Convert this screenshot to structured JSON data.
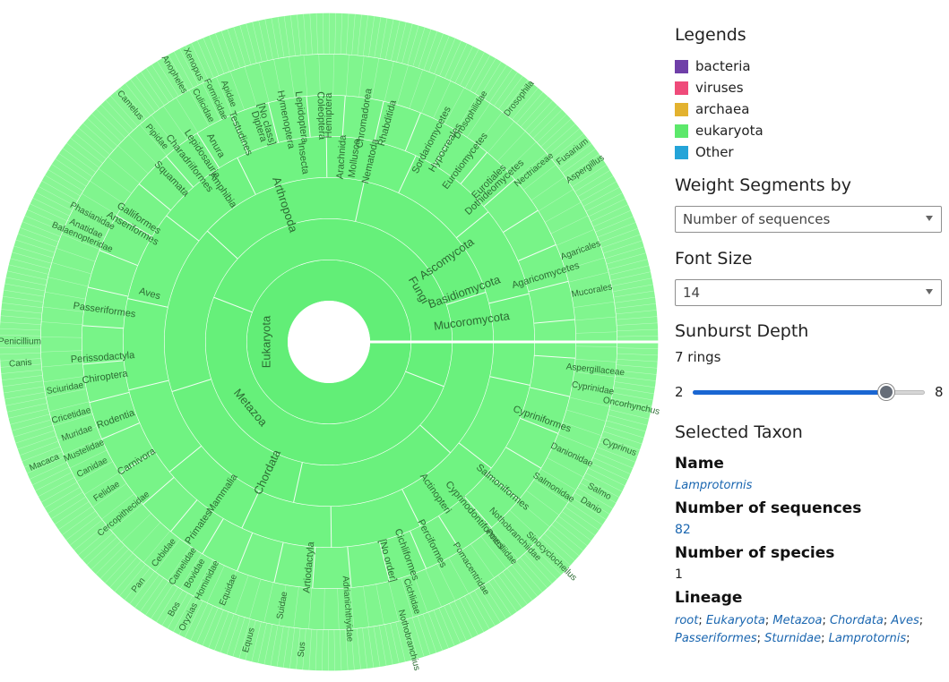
{
  "legends": {
    "title": "Legends",
    "items": [
      {
        "label": "bacteria",
        "color": "#6f3fa8"
      },
      {
        "label": "viruses",
        "color": "#ef4b7a"
      },
      {
        "label": "archaea",
        "color": "#e3b22f"
      },
      {
        "label": "eukaryota",
        "color": "#5ce86b"
      },
      {
        "label": "Other",
        "color": "#24a4d8"
      }
    ]
  },
  "weight": {
    "title": "Weight Segments by",
    "value": "Number of sequences"
  },
  "font_size": {
    "title": "Font Size",
    "value": "14"
  },
  "depth": {
    "title": "Sunburst Depth",
    "value_text": "7 rings",
    "min": "2",
    "max": "8",
    "value": 7
  },
  "selected": {
    "title": "Selected Taxon",
    "name_label": "Name",
    "name": "Lamprotornis",
    "sequences_label": "Number of sequences",
    "sequences": "82",
    "species_label": "Number of species",
    "species": "1",
    "lineage_label": "Lineage",
    "lineage": [
      "root",
      "Eukaryota",
      "Metazoa",
      "Chordata",
      "Aves",
      "Passeriformes",
      "Sturnidae",
      "Lamprotornis"
    ]
  },
  "sunburst": {
    "colors": {
      "fill": "#66f07a",
      "stroke": "#ffffff"
    },
    "labels": [
      {
        "text": "Eukaryota",
        "ring": 1
      },
      {
        "text": "Metazoa",
        "ring": 2
      },
      {
        "text": "Fungi",
        "ring": 2
      },
      {
        "text": "Chordata",
        "ring": 3
      },
      {
        "text": "Arthropoda",
        "ring": 3
      },
      {
        "text": "Ascomycota",
        "ring": 3
      },
      {
        "text": "Mammalia",
        "ring": 4
      },
      {
        "text": "Aves",
        "ring": 4
      },
      {
        "text": "Actinopteri",
        "ring": 4
      },
      {
        "text": "Insecta",
        "ring": 4
      },
      {
        "text": "Amphibia",
        "ring": 4
      },
      {
        "text": "Mollusca",
        "ring": 4
      },
      {
        "text": "Nematoda",
        "ring": 4
      },
      {
        "text": "Arachnida",
        "ring": 4
      },
      {
        "text": "Basidiomycota",
        "ring": 3
      },
      {
        "text": "Mucoromycota",
        "ring": 3
      },
      {
        "text": "Passeriformes",
        "ring": 5
      },
      {
        "text": "Primates",
        "ring": 5
      },
      {
        "text": "Carnivora",
        "ring": 5
      },
      {
        "text": "Rodentia",
        "ring": 5
      },
      {
        "text": "Artiodactyla",
        "ring": 5
      },
      {
        "text": "Chiroptera",
        "ring": 5
      },
      {
        "text": "Perissodactyla",
        "ring": 5
      },
      {
        "text": "Cypriniformes",
        "ring": 5
      },
      {
        "text": "Salmoniformes",
        "ring": 5
      },
      {
        "text": "Cyprinodontiformes",
        "ring": 5
      },
      {
        "text": "Perciformes",
        "ring": 5
      },
      {
        "text": "Diptera",
        "ring": 5
      },
      {
        "text": "Hymenoptera",
        "ring": 5
      },
      {
        "text": "Lepidoptera",
        "ring": 5
      },
      {
        "text": "Coleoptera",
        "ring": 5
      },
      {
        "text": "Hemiptera",
        "ring": 5
      },
      {
        "text": "Anura",
        "ring": 5
      },
      {
        "text": "Squamata",
        "ring": 5
      },
      {
        "text": "Testudines",
        "ring": 5
      },
      {
        "text": "Chromadorea",
        "ring": 5
      },
      {
        "text": "Rhabditida",
        "ring": 5
      },
      {
        "text": "Hypocreales",
        "ring": 5
      },
      {
        "text": "Eurotiales",
        "ring": 5
      },
      {
        "text": "Sordariomycetes",
        "ring": 5
      },
      {
        "text": "Eurotiomycetes",
        "ring": 5
      },
      {
        "text": "Dothideomycetes",
        "ring": 5
      },
      {
        "text": "Agaricomycetes",
        "ring": 5
      },
      {
        "text": "Agaricales",
        "ring": 6
      },
      {
        "text": "Mucorales",
        "ring": 6
      },
      {
        "text": "Cichliformes",
        "ring": 5
      },
      {
        "text": "Cichlidae",
        "ring": 6
      },
      {
        "text": "[No order]",
        "ring": 5
      },
      {
        "text": "Cyprinidae",
        "ring": 6
      },
      {
        "text": "Danionidae",
        "ring": 6
      },
      {
        "text": "Salmonidae",
        "ring": 6
      },
      {
        "text": "Nothobranchiidae",
        "ring": 6
      },
      {
        "text": "Poeciliidae",
        "ring": 6
      },
      {
        "text": "Pomacentridae",
        "ring": 6
      },
      {
        "text": "Adrianichthyidae",
        "ring": 6
      },
      {
        "text": "Hominidae",
        "ring": 6
      },
      {
        "text": "Cebidae",
        "ring": 6
      },
      {
        "text": "Cercopithecidae",
        "ring": 6
      },
      {
        "text": "Felidae",
        "ring": 6
      },
      {
        "text": "Canidae",
        "ring": 6
      },
      {
        "text": "Mustelidae",
        "ring": 6
      },
      {
        "text": "Muridae",
        "ring": 6
      },
      {
        "text": "Cricetidae",
        "ring": 6
      },
      {
        "text": "Sciuridae",
        "ring": 6
      },
      {
        "text": "Equidae",
        "ring": 6
      },
      {
        "text": "Suidae",
        "ring": 6
      },
      {
        "text": "Bovidae",
        "ring": 6
      },
      {
        "text": "Camelidae",
        "ring": 6
      },
      {
        "text": "Balaenopteridae",
        "ring": 6
      },
      {
        "text": "Phasianidae",
        "ring": 6
      },
      {
        "text": "Anatidae",
        "ring": 6
      },
      {
        "text": "Anseriformes",
        "ring": 5
      },
      {
        "text": "Galliformes",
        "ring": 5
      },
      {
        "text": "Charadriiformes",
        "ring": 5
      },
      {
        "text": "Pipidae",
        "ring": 6
      },
      {
        "text": "Lepidosauria",
        "ring": 5
      },
      {
        "text": "[No class]",
        "ring": 5
      },
      {
        "text": "Apidae",
        "ring": 6
      },
      {
        "text": "Formicidae",
        "ring": 6
      },
      {
        "text": "Culicidae",
        "ring": 6
      },
      {
        "text": "Drosophilidae",
        "ring": 6
      },
      {
        "text": "Nectriaceae",
        "ring": 6
      },
      {
        "text": "Aspergillaceae",
        "ring": 6
      },
      {
        "text": "Cyprinus",
        "ring": 7
      },
      {
        "text": "Danio",
        "ring": 7
      },
      {
        "text": "Salmo",
        "ring": 7
      },
      {
        "text": "Oncorhynchus",
        "ring": 7
      },
      {
        "text": "Sinocyclocheilus",
        "ring": 7
      },
      {
        "text": "Nothobranchius",
        "ring": 7
      },
      {
        "text": "Oryzias",
        "ring": 7
      },
      {
        "text": "Pan",
        "ring": 7
      },
      {
        "text": "Macaca",
        "ring": 7
      },
      {
        "text": "Canis",
        "ring": 7
      },
      {
        "text": "Equus",
        "ring": 7
      },
      {
        "text": "Sus",
        "ring": 7
      },
      {
        "text": "Bos",
        "ring": 7
      },
      {
        "text": "Camelus",
        "ring": 7
      },
      {
        "text": "Xenopus",
        "ring": 7
      },
      {
        "text": "Anopheles",
        "ring": 7
      },
      {
        "text": "Drosophila",
        "ring": 7
      },
      {
        "text": "Fusarium",
        "ring": 7
      },
      {
        "text": "Aspergillus",
        "ring": 7
      },
      {
        "text": "Penicillium",
        "ring": 7
      }
    ]
  }
}
